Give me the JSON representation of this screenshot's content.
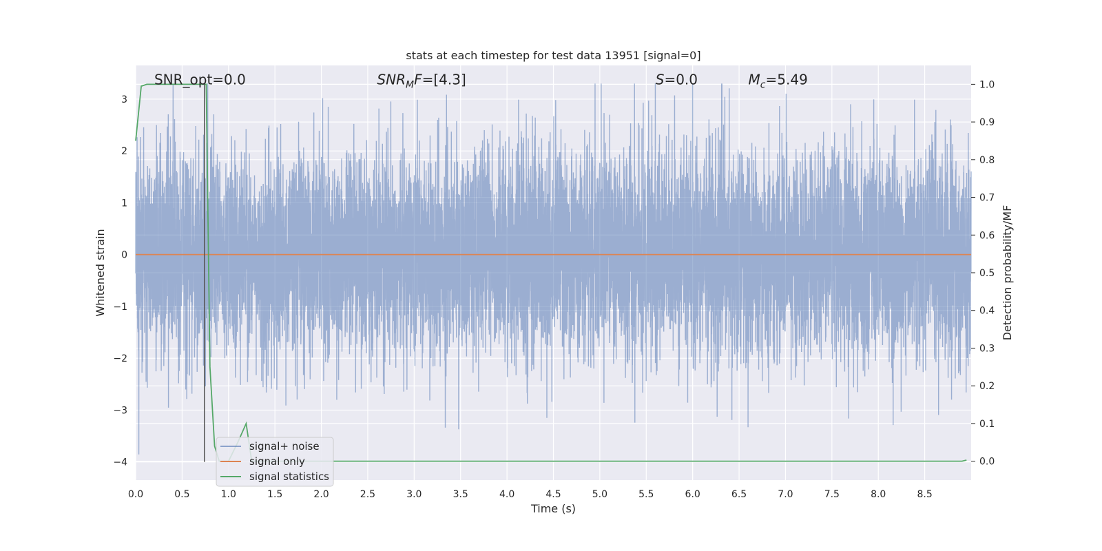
{
  "chart_data": {
    "type": "line",
    "title": "stats at each timestep for test data 13951 [signal=0]",
    "xlabel": "Time (s)",
    "ylabel": "Whitened strain",
    "ylabel_right": "Detection probability/MF",
    "xlim": [
      0.0,
      9.0
    ],
    "ylim": [
      -4.35,
      3.65
    ],
    "ylim_right": [
      -0.05,
      1.05
    ],
    "x_ticks": [
      "0.0",
      "0.5",
      "1.0",
      "1.5",
      "2.0",
      "2.5",
      "3.0",
      "3.5",
      "4.0",
      "4.5",
      "5.0",
      "5.5",
      "6.0",
      "6.5",
      "7.0",
      "7.5",
      "8.0",
      "8.5"
    ],
    "x_tick_values": [
      0.0,
      0.5,
      1.0,
      1.5,
      2.0,
      2.5,
      3.0,
      3.5,
      4.0,
      4.5,
      5.0,
      5.5,
      6.0,
      6.5,
      7.0,
      7.5,
      8.0,
      8.5
    ],
    "y_ticks": [
      "−4",
      "−3",
      "−2",
      "−1",
      "0",
      "1",
      "2",
      "3"
    ],
    "y_tick_values": [
      -4,
      -3,
      -2,
      -1,
      0,
      1,
      2,
      3
    ],
    "y_ticks_right": [
      "0.0",
      "0.1",
      "0.2",
      "0.3",
      "0.4",
      "0.5",
      "0.6",
      "0.7",
      "0.8",
      "0.9",
      "1.0"
    ],
    "y_tick_values_right": [
      0.0,
      0.1,
      0.2,
      0.3,
      0.4,
      0.5,
      0.6,
      0.7,
      0.8,
      0.9,
      1.0
    ],
    "grid": true,
    "legend_position": "bottom-left",
    "annotations": [
      {
        "id": "snr-opt",
        "text": "SNR_opt=0.0",
        "x": 0.2,
        "y": 3.38
      },
      {
        "id": "snr-mf",
        "text": "SNR_MF=[4.3]",
        "x": 2.6,
        "y": 3.38
      },
      {
        "id": "s-value",
        "text": "S=0.0",
        "x": 5.6,
        "y": 3.38
      },
      {
        "id": "mc-value",
        "text": "M_c=5.49",
        "x": 6.6,
        "y": 3.38
      }
    ],
    "vertical_marker": {
      "x": 0.74,
      "y_from": -4.0,
      "y_to": 3.3,
      "color": "#555555"
    },
    "series": [
      {
        "name": "signal+ noise",
        "axis": "left",
        "color": "#4c72b0",
        "description_kind": "noise",
        "amplitude_std": 1.0,
        "x_range": [
          0.0,
          9.0
        ],
        "sample_count": 9000
      },
      {
        "name": "signal only",
        "axis": "left",
        "color": "#dd8452",
        "x": [
          0.0,
          9.0
        ],
        "y": [
          0.0,
          0.0
        ]
      },
      {
        "name": "signal statistics",
        "axis": "right",
        "color": "#55a868",
        "x": [
          0.0,
          0.06,
          0.12,
          0.2,
          0.3,
          0.5,
          0.6,
          0.7,
          0.74,
          0.76,
          0.8,
          0.85,
          0.9,
          1.0,
          1.1,
          1.19,
          1.25,
          1.3,
          1.5,
          2.0,
          3.0,
          4.0,
          5.0,
          6.0,
          7.0,
          8.0,
          8.8,
          8.9,
          8.95
        ],
        "y": [
          0.85,
          0.995,
          1.0,
          1.0,
          1.0,
          1.0,
          1.0,
          1.0,
          1.0,
          1.0,
          0.25,
          0.04,
          0.0,
          0.0,
          0.05,
          0.1,
          0.0,
          0.0,
          0.0,
          0.0,
          0.0,
          0.0,
          0.0,
          0.0,
          0.0,
          0.0,
          0.0,
          0.0,
          0.003
        ]
      }
    ]
  }
}
